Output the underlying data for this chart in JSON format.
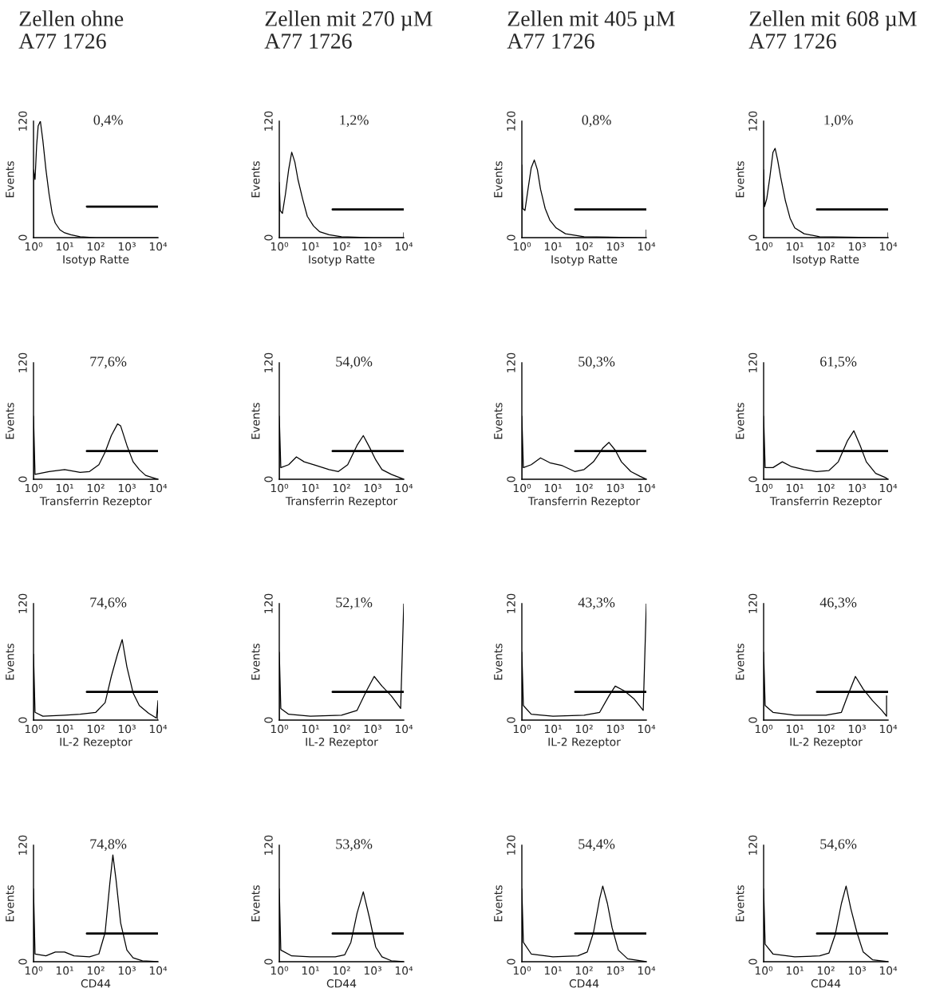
{
  "chart_data": [
    {
      "type": "line",
      "title": "Zellen ohne\nA77 1726",
      "xlabel": "Isotyp Ratte",
      "ylabel": "Events",
      "log": "x",
      "grid": false,
      "xlim": [
        1,
        10000
      ],
      "ylim": [
        0,
        120
      ],
      "xticks": [
        {
          "value": 1,
          "label": "10⁰"
        },
        {
          "value": 10,
          "label": "10¹"
        },
        {
          "value": 100,
          "label": "10²"
        },
        {
          "value": 1000,
          "label": "10³"
        },
        {
          "value": 10000,
          "label": "10⁴"
        }
      ],
      "yticks": [
        0,
        120
      ],
      "annotations": [
        "0,4%"
      ],
      "series": [
        {
          "color": "#000000",
          "x": [
            1,
            1,
            1.12,
            1.26,
            1.41,
            1.66,
            2,
            2.51,
            3.16,
            3.98,
            5.01,
            7.08,
            10,
            15.8,
            31.6,
            100,
            10000
          ],
          "values": [
            0,
            70,
            60,
            95,
            115,
            120,
            100,
            70,
            45,
            25,
            15,
            8,
            5,
            3,
            1,
            0,
            0
          ]
        },
        {
          "color": "#000000",
          "x": [
            52,
            10000
          ],
          "values": [
            32,
            32
          ]
        }
      ]
    },
    {
      "type": "line",
      "title": "Zellen mit 270 µM\nA77 1726",
      "xlabel": "Isotyp Ratte",
      "ylabel": "Events",
      "log": "x",
      "grid": false,
      "xlim": [
        1,
        10000
      ],
      "ylim": [
        0,
        120
      ],
      "xticks": [
        {
          "value": 1,
          "label": "10⁰"
        },
        {
          "value": 10,
          "label": "10¹"
        },
        {
          "value": 100,
          "label": "10²"
        },
        {
          "value": 1000,
          "label": "10³"
        },
        {
          "value": 10000,
          "label": "10⁴"
        }
      ],
      "yticks": [
        0,
        120
      ],
      "annotations": [
        "1,2%"
      ],
      "series": [
        {
          "color": "#000000",
          "x": [
            1,
            1,
            1.07,
            1.26,
            1.58,
            2,
            2.51,
            3.16,
            3.98,
            5.62,
            7.94,
            12.6,
            20,
            39.8,
            100,
            1000,
            10000,
            10000
          ],
          "values": [
            0,
            57,
            28,
            25,
            45,
            70,
            88,
            78,
            60,
            40,
            22,
            12,
            6,
            3,
            1,
            0,
            0,
            5
          ]
        },
        {
          "color": "#000000",
          "x": [
            52,
            10000
          ],
          "values": [
            29,
            29
          ]
        }
      ]
    },
    {
      "type": "line",
      "title": "Zellen mit 405 µM\nA77 1726",
      "xlabel": "Isotyp Ratte",
      "ylabel": "Events",
      "log": "x",
      "grid": false,
      "xlim": [
        1,
        10000
      ],
      "ylim": [
        0,
        120
      ],
      "xticks": [
        {
          "value": 1,
          "label": "10⁰"
        },
        {
          "value": 10,
          "label": "10¹"
        },
        {
          "value": 100,
          "label": "10²"
        },
        {
          "value": 1000,
          "label": "10³"
        },
        {
          "value": 10000,
          "label": "10⁴"
        }
      ],
      "yticks": [
        0,
        120
      ],
      "annotations": [
        "0,8%"
      ],
      "series": [
        {
          "color": "#000000",
          "x": [
            1,
            1,
            1.07,
            1.26,
            1.58,
            2,
            2.51,
            3.16,
            3.98,
            5.62,
            7.94,
            12.6,
            25.1,
            100,
            7943,
            10000,
            10000
          ],
          "values": [
            0,
            75,
            30,
            28,
            50,
            72,
            80,
            70,
            50,
            30,
            18,
            10,
            4,
            1,
            0,
            0,
            8
          ]
        },
        {
          "color": "#000000",
          "x": [
            52,
            10000
          ],
          "values": [
            29,
            29
          ]
        }
      ]
    },
    {
      "type": "line",
      "title": "Zellen mit 608 µM\nA77 1726",
      "xlabel": "Isotyp Ratte",
      "ylabel": "Events",
      "log": "x",
      "grid": false,
      "xlim": [
        1,
        10000
      ],
      "ylim": [
        0,
        120
      ],
      "xticks": [
        {
          "value": 1,
          "label": "10⁰"
        },
        {
          "value": 10,
          "label": "10¹"
        },
        {
          "value": 100,
          "label": "10²"
        },
        {
          "value": 1000,
          "label": "10³"
        },
        {
          "value": 10000,
          "label": "10⁴"
        }
      ],
      "yticks": [
        0,
        120
      ],
      "annotations": [
        "1,0%"
      ],
      "series": [
        {
          "color": "#000000",
          "x": [
            1,
            1,
            1.07,
            1.26,
            1.58,
            2,
            2.34,
            2.82,
            3.55,
            5.01,
            7.08,
            10,
            20,
            63.1,
            7943,
            10000,
            10000
          ],
          "values": [
            0,
            70,
            32,
            40,
            62,
            88,
            92,
            80,
            62,
            38,
            20,
            10,
            4,
            1,
            0,
            0,
            5
          ]
        },
        {
          "color": "#000000",
          "x": [
            52,
            10000
          ],
          "values": [
            29,
            29
          ]
        }
      ]
    },
    {
      "type": "line",
      "xlabel": "Transferrin Rezeptor",
      "ylabel": "Events",
      "log": "x",
      "grid": false,
      "xlim": [
        1,
        10000
      ],
      "ylim": [
        0,
        120
      ],
      "xticks": [
        {
          "value": 1,
          "label": "10⁰"
        },
        {
          "value": 10,
          "label": "10¹"
        },
        {
          "value": 100,
          "label": "10²"
        },
        {
          "value": 1000,
          "label": "10³"
        },
        {
          "value": 10000,
          "label": "10⁴"
        }
      ],
      "yticks": [
        0,
        120
      ],
      "annotations": [
        "77,6%"
      ],
      "series": [
        {
          "color": "#000000",
          "x": [
            1,
            1,
            1.12,
            3.16,
            10,
            31.6,
            63.1,
            126,
            200,
            316,
            501,
            631,
            1000,
            1585,
            2512,
            3981,
            7943,
            10000
          ],
          "values": [
            0,
            65,
            5,
            8,
            10,
            7,
            8,
            15,
            28,
            45,
            57,
            55,
            35,
            18,
            10,
            4,
            1,
            0
          ]
        },
        {
          "color": "#000000",
          "x": [
            52,
            10000
          ],
          "values": [
            29,
            29
          ]
        }
      ]
    },
    {
      "type": "line",
      "xlabel": "Transferrin Rezeptor",
      "ylabel": "Events",
      "log": "x",
      "grid": false,
      "xlim": [
        1,
        10000
      ],
      "ylim": [
        0,
        120
      ],
      "xticks": [
        {
          "value": 1,
          "label": "10⁰"
        },
        {
          "value": 10,
          "label": "10¹"
        },
        {
          "value": 100,
          "label": "10²"
        },
        {
          "value": 1000,
          "label": "10³"
        },
        {
          "value": 10000,
          "label": "10⁴"
        }
      ],
      "yticks": [
        0,
        120
      ],
      "annotations": [
        "54,0%"
      ],
      "series": [
        {
          "color": "#000000",
          "x": [
            1,
            1,
            1.12,
            2,
            3.55,
            6.31,
            15.8,
            39.8,
            79.4,
            158,
            316,
            501,
            794,
            1259,
            1995,
            3981,
            10000
          ],
          "values": [
            0,
            65,
            12,
            15,
            23,
            18,
            14,
            10,
            8,
            15,
            35,
            45,
            33,
            20,
            10,
            5,
            0
          ]
        },
        {
          "color": "#000000",
          "x": [
            52,
            10000
          ],
          "values": [
            29,
            29
          ]
        }
      ]
    },
    {
      "type": "line",
      "xlabel": "Transferrin Rezeptor",
      "ylabel": "Events",
      "log": "x",
      "grid": false,
      "xlim": [
        1,
        10000
      ],
      "ylim": [
        0,
        120
      ],
      "xticks": [
        {
          "value": 1,
          "label": "10⁰"
        },
        {
          "value": 10,
          "label": "10¹"
        },
        {
          "value": 100,
          "label": "10²"
        },
        {
          "value": 1000,
          "label": "10³"
        },
        {
          "value": 10000,
          "label": "10⁴"
        }
      ],
      "yticks": [
        0,
        120
      ],
      "annotations": [
        "50,3%"
      ],
      "series": [
        {
          "color": "#000000",
          "x": [
            1,
            1,
            1.12,
            2,
            3.98,
            7.94,
            20,
            50.1,
            100,
            200,
            398,
            631,
            1000,
            1585,
            3162,
            6310,
            10000
          ],
          "values": [
            0,
            65,
            12,
            15,
            22,
            17,
            14,
            8,
            10,
            18,
            32,
            38,
            30,
            18,
            8,
            3,
            0
          ]
        },
        {
          "color": "#000000",
          "x": [
            52,
            10000
          ],
          "values": [
            29,
            29
          ]
        }
      ]
    },
    {
      "type": "line",
      "xlabel": "Transferrin Rezeptor",
      "ylabel": "Events",
      "log": "x",
      "grid": false,
      "xlim": [
        1,
        10000
      ],
      "ylim": [
        0,
        120
      ],
      "xticks": [
        {
          "value": 1,
          "label": "10⁰"
        },
        {
          "value": 10,
          "label": "10¹"
        },
        {
          "value": 100,
          "label": "10²"
        },
        {
          "value": 1000,
          "label": "10³"
        },
        {
          "value": 10000,
          "label": "10⁴"
        }
      ],
      "yticks": [
        0,
        120
      ],
      "annotations": [
        "61,5%"
      ],
      "series": [
        {
          "color": "#000000",
          "x": [
            1,
            1,
            1.12,
            2,
            3.98,
            7.94,
            20,
            50.1,
            126,
            251,
            501,
            794,
            1259,
            1995,
            3981,
            7943,
            10000
          ],
          "values": [
            0,
            65,
            12,
            12,
            18,
            13,
            10,
            8,
            9,
            18,
            40,
            50,
            35,
            18,
            6,
            2,
            0
          ]
        },
        {
          "color": "#000000",
          "x": [
            52,
            10000
          ],
          "values": [
            29,
            29
          ]
        }
      ]
    },
    {
      "type": "line",
      "xlabel": "IL-2 Rezeptor",
      "ylabel": "Events",
      "log": "x",
      "grid": false,
      "xlim": [
        1,
        10000
      ],
      "ylim": [
        0,
        120
      ],
      "xticks": [
        {
          "value": 1,
          "label": "10⁰"
        },
        {
          "value": 10,
          "label": "10¹"
        },
        {
          "value": 100,
          "label": "10²"
        },
        {
          "value": 1000,
          "label": "10³"
        },
        {
          "value": 10000,
          "label": "10⁴"
        }
      ],
      "yticks": [
        0,
        120
      ],
      "annotations": [
        "74,6%"
      ],
      "series": [
        {
          "color": "#000000",
          "x": [
            1,
            1,
            1.12,
            2,
            10,
            31.6,
            100,
            200,
            316,
            501,
            708,
            1000,
            1585,
            2512,
            5012,
            8913,
            10000,
            10000
          ],
          "values": [
            0,
            68,
            8,
            4,
            5,
            6,
            8,
            18,
            45,
            68,
            83,
            55,
            28,
            15,
            7,
            2,
            20,
            0
          ]
        },
        {
          "color": "#000000",
          "x": [
            52,
            10000
          ],
          "values": [
            29,
            29
          ]
        }
      ]
    },
    {
      "type": "line",
      "xlabel": "IL-2 Rezeptor",
      "ylabel": "Events",
      "log": "x",
      "grid": false,
      "xlim": [
        1,
        10000
      ],
      "ylim": [
        0,
        120
      ],
      "xticks": [
        {
          "value": 1,
          "label": "10⁰"
        },
        {
          "value": 10,
          "label": "10¹"
        },
        {
          "value": 100,
          "label": "10²"
        },
        {
          "value": 1000,
          "label": "10³"
        },
        {
          "value": 10000,
          "label": "10⁴"
        }
      ],
      "yticks": [
        0,
        120
      ],
      "annotations": [
        "52,1%"
      ],
      "series": [
        {
          "color": "#000000",
          "x": [
            1,
            1,
            1.12,
            2,
            10,
            100,
            316,
            631,
            1122,
            1995,
            3981,
            7943,
            10000
          ],
          "values": [
            0,
            70,
            12,
            6,
            4,
            5,
            10,
            30,
            45,
            35,
            25,
            12,
            120
          ]
        },
        {
          "color": "#000000",
          "x": [
            52,
            10000
          ],
          "values": [
            29,
            29
          ]
        }
      ]
    },
    {
      "type": "line",
      "xlabel": "IL-2 Rezeptor",
      "ylabel": "Events",
      "log": "x",
      "grid": false,
      "xlim": [
        1,
        10000
      ],
      "ylim": [
        0,
        120
      ],
      "xticks": [
        {
          "value": 1,
          "label": "10⁰"
        },
        {
          "value": 10,
          "label": "10¹"
        },
        {
          "value": 100,
          "label": "10²"
        },
        {
          "value": 1000,
          "label": "10³"
        },
        {
          "value": 10000,
          "label": "10⁴"
        }
      ],
      "yticks": [
        0,
        120
      ],
      "annotations": [
        "43,3%"
      ],
      "series": [
        {
          "color": "#000000",
          "x": [
            1,
            1,
            1.12,
            2,
            10,
            100,
            316,
            631,
            1000,
            1995,
            3981,
            7943,
            10000
          ],
          "values": [
            0,
            70,
            15,
            6,
            4,
            5,
            8,
            25,
            35,
            30,
            22,
            10,
            120
          ]
        },
        {
          "color": "#000000",
          "x": [
            52,
            10000
          ],
          "values": [
            29,
            29
          ]
        }
      ]
    },
    {
      "type": "line",
      "xlabel": "IL-2 Rezeptor",
      "ylabel": "Events",
      "log": "x",
      "grid": false,
      "xlim": [
        1,
        10000
      ],
      "ylim": [
        0,
        120
      ],
      "xticks": [
        {
          "value": 1,
          "label": "10⁰"
        },
        {
          "value": 10,
          "label": "10¹"
        },
        {
          "value": 100,
          "label": "10²"
        },
        {
          "value": 1000,
          "label": "10³"
        },
        {
          "value": 10000,
          "label": "10⁴"
        }
      ],
      "yticks": [
        0,
        120
      ],
      "annotations": [
        "46,3%"
      ],
      "series": [
        {
          "color": "#000000",
          "x": [
            1,
            1,
            1.12,
            2,
            10,
            100,
            316,
            501,
            891,
            1585,
            3162,
            6310,
            8913,
            8913
          ],
          "values": [
            0,
            70,
            15,
            8,
            5,
            5,
            8,
            25,
            45,
            32,
            20,
            10,
            4,
            25
          ]
        },
        {
          "color": "#000000",
          "x": [
            52,
            10000
          ],
          "values": [
            29,
            29
          ]
        }
      ]
    },
    {
      "type": "line",
      "xlabel": "CD44",
      "ylabel": "Events",
      "log": "x",
      "grid": false,
      "xlim": [
        1,
        10000
      ],
      "ylim": [
        0,
        120
      ],
      "xticks": [
        {
          "value": 1,
          "label": "10⁰"
        },
        {
          "value": 10,
          "label": "10¹"
        },
        {
          "value": 100,
          "label": "10²"
        },
        {
          "value": 1000,
          "label": "10³"
        },
        {
          "value": 10000,
          "label": "10⁴"
        }
      ],
      "yticks": [
        0,
        120
      ],
      "annotations": [
        "74,8%"
      ],
      "series": [
        {
          "color": "#000000",
          "x": [
            1,
            1,
            1.12,
            2.51,
            5.01,
            10,
            20,
            63.1,
            126,
            200,
            282,
            355,
            447,
            631,
            1000,
            1585,
            3162,
            10000
          ],
          "values": [
            0,
            75,
            8,
            6,
            10,
            10,
            6,
            5,
            8,
            30,
            80,
            110,
            85,
            40,
            12,
            4,
            1,
            0
          ]
        },
        {
          "color": "#000000",
          "x": [
            52,
            10000
          ],
          "values": [
            29,
            29
          ]
        }
      ]
    },
    {
      "type": "line",
      "xlabel": "CD44",
      "ylabel": "Events",
      "log": "x",
      "grid": false,
      "xlim": [
        1,
        10000
      ],
      "ylim": [
        0,
        120
      ],
      "xticks": [
        {
          "value": 1,
          "label": "10⁰"
        },
        {
          "value": 10,
          "label": "10¹"
        },
        {
          "value": 100,
          "label": "10²"
        },
        {
          "value": 1000,
          "label": "10³"
        },
        {
          "value": 10000,
          "label": "10⁴"
        }
      ],
      "yticks": [
        0,
        120
      ],
      "annotations": [
        "53,8%"
      ],
      "series": [
        {
          "color": "#000000",
          "x": [
            1,
            1,
            1.12,
            2.51,
            10,
            63.1,
            126,
            200,
            316,
            501,
            794,
            1259,
            1995,
            3981,
            10000
          ],
          "values": [
            0,
            75,
            12,
            6,
            5,
            5,
            7,
            20,
            50,
            72,
            45,
            15,
            5,
            1,
            0
          ]
        },
        {
          "color": "#000000",
          "x": [
            52,
            10000
          ],
          "values": [
            29,
            29
          ]
        }
      ]
    },
    {
      "type": "line",
      "xlabel": "CD44",
      "ylabel": "Events",
      "log": "x",
      "grid": false,
      "xlim": [
        1,
        10000
      ],
      "ylim": [
        0,
        120
      ],
      "xticks": [
        {
          "value": 1,
          "label": "10⁰"
        },
        {
          "value": 10,
          "label": "10¹"
        },
        {
          "value": 100,
          "label": "10²"
        },
        {
          "value": 1000,
          "label": "10³"
        },
        {
          "value": 10000,
          "label": "10⁴"
        }
      ],
      "yticks": [
        0,
        120
      ],
      "annotations": [
        "54,4%"
      ],
      "series": [
        {
          "color": "#000000",
          "x": [
            1,
            1,
            1.12,
            2,
            10,
            63.1,
            126,
            200,
            316,
            398,
            562,
            794,
            1259,
            2512,
            10000
          ],
          "values": [
            0,
            75,
            20,
            8,
            5,
            6,
            10,
            30,
            65,
            78,
            60,
            35,
            12,
            3,
            0
          ]
        },
        {
          "color": "#000000",
          "x": [
            52,
            10000
          ],
          "values": [
            29,
            29
          ]
        }
      ]
    },
    {
      "type": "line",
      "xlabel": "CD44",
      "ylabel": "Events",
      "log": "x",
      "grid": false,
      "xlim": [
        1,
        10000
      ],
      "ylim": [
        0,
        120
      ],
      "xticks": [
        {
          "value": 1,
          "label": "10⁰"
        },
        {
          "value": 10,
          "label": "10¹"
        },
        {
          "value": 100,
          "label": "10²"
        },
        {
          "value": 1000,
          "label": "10³"
        },
        {
          "value": 10000,
          "label": "10⁴"
        }
      ],
      "yticks": [
        0,
        120
      ],
      "annotations": [
        "54,6%"
      ],
      "series": [
        {
          "color": "#000000",
          "x": [
            1,
            1,
            1.12,
            2,
            10,
            63.1,
            126,
            200,
            316,
            447,
            631,
            1000,
            1585,
            3162,
            10000
          ],
          "values": [
            0,
            75,
            18,
            8,
            5,
            6,
            9,
            28,
            60,
            78,
            55,
            30,
            10,
            2,
            0
          ]
        },
        {
          "color": "#000000",
          "x": [
            52,
            10000
          ],
          "values": [
            29,
            29
          ]
        }
      ]
    }
  ]
}
